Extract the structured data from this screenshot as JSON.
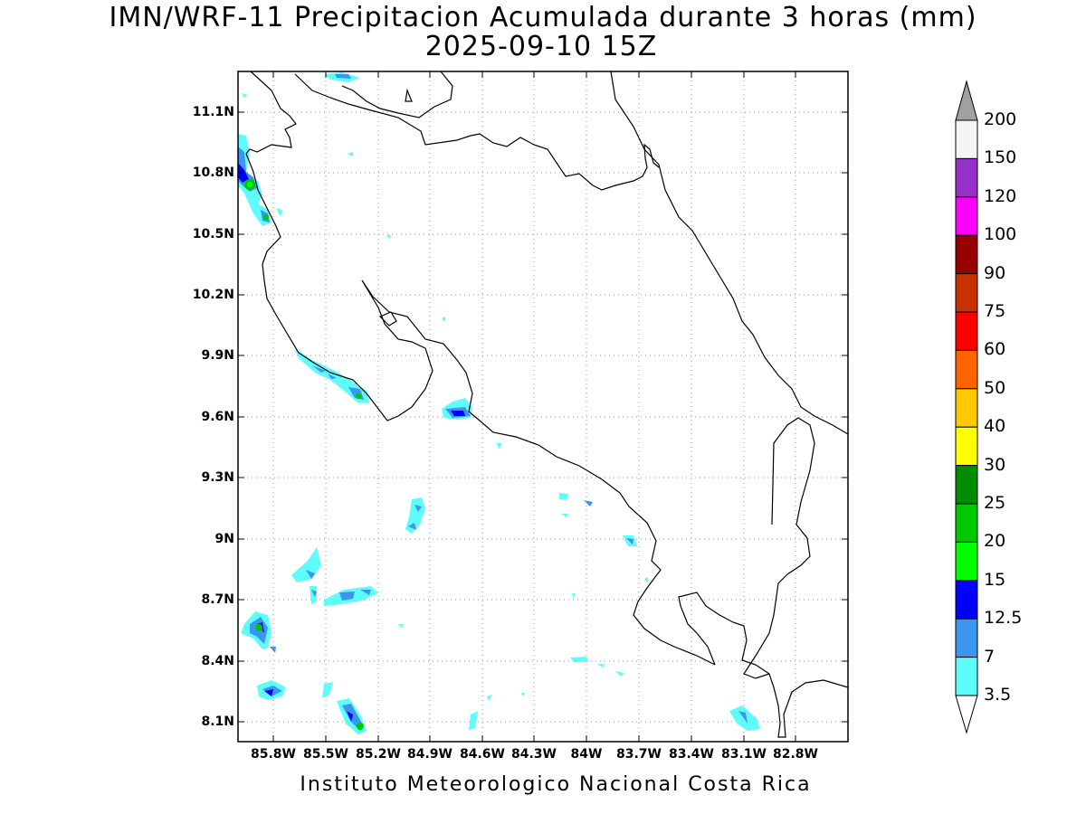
{
  "title": {
    "line1": "IMN/WRF-11 Precipitacion Acumulada durante 3 horas (mm)",
    "line2": "2025-09-10 15Z"
  },
  "map": {
    "lon_range": [
      -86.0,
      -82.6
    ],
    "lat_range": [
      8.0,
      11.3
    ],
    "lat_ticks": [
      "11.1N",
      "10.8N",
      "10.5N",
      "10.2N",
      "9.9N",
      "9.6N",
      "9.3N",
      "9N",
      "8.7N",
      "8.4N",
      "8.1N"
    ],
    "lat_values": [
      11.1,
      10.8,
      10.5,
      10.2,
      9.9,
      9.6,
      9.3,
      9.0,
      8.7,
      8.4,
      8.1
    ],
    "lon_ticks": [
      "85.8W",
      "85.5W",
      "85.2W",
      "84.9W",
      "84.6W",
      "84.3W",
      "84W",
      "83.7W",
      "83.4W",
      "83.1W",
      "82.8W"
    ],
    "lon_values": [
      -85.8,
      -85.5,
      -85.2,
      -84.9,
      -84.6,
      -84.3,
      -84.0,
      -83.7,
      -83.4,
      -83.1,
      -82.8
    ],
    "grid": true,
    "coastline": "Costa Rica"
  },
  "colorbar": {
    "levels": [
      "3.5",
      "7",
      "12.5",
      "15",
      "20",
      "25",
      "30",
      "40",
      "50",
      "60",
      "75",
      "90",
      "100",
      "120",
      "150",
      "200"
    ],
    "colors": [
      "#5ffcfc",
      "#3c96f0",
      "#0000ff",
      "#00ff00",
      "#00c800",
      "#008c00",
      "#ffff00",
      "#ffc800",
      "#ff6400",
      "#ff0000",
      "#c83200",
      "#960000",
      "#ff00ff",
      "#9632c8",
      "#f5f5f5",
      "#a0a0a0"
    ],
    "min_arrow_color": "#ffffff",
    "max_arrow_color": "#a0a0a0"
  },
  "footer": "Instituto Meteorologico Nacional Costa Rica"
}
